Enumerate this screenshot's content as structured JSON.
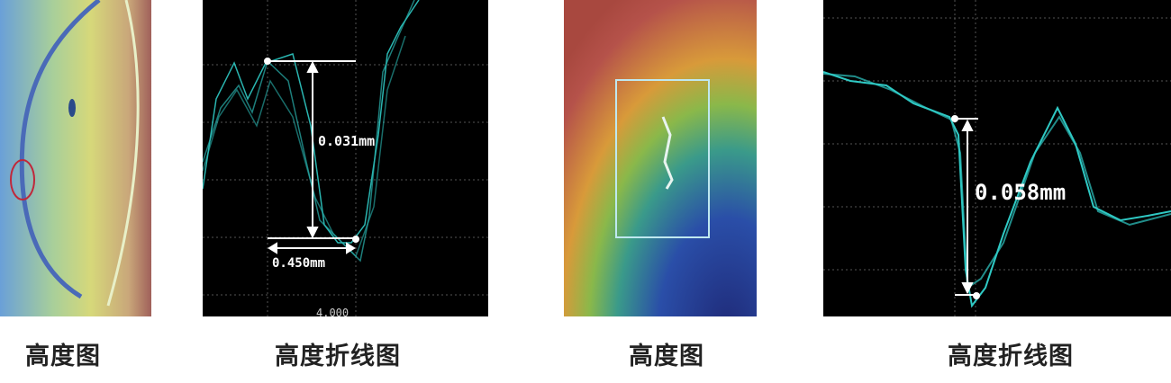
{
  "panels": [
    {
      "caption": "高度图",
      "type": "height-map",
      "colors": [
        "#5a8fd0",
        "#c8d86a",
        "#c9a77a",
        "#a0524a"
      ]
    },
    {
      "caption": "高度折线图",
      "type": "height-profile",
      "height_label": "0.031mm",
      "width_label": "0.450mm",
      "axis_label": "4.000",
      "line_color": "#2fc9c4"
    },
    {
      "caption": "高度图",
      "type": "height-map",
      "colors": [
        "#b5524a",
        "#d89a3a",
        "#3a9a6a",
        "#2a4ea8",
        "#1f2a78"
      ]
    },
    {
      "caption": "高度折线图",
      "type": "height-profile",
      "height_label": "0.058mm",
      "line_color": "#2fc9c4"
    }
  ]
}
